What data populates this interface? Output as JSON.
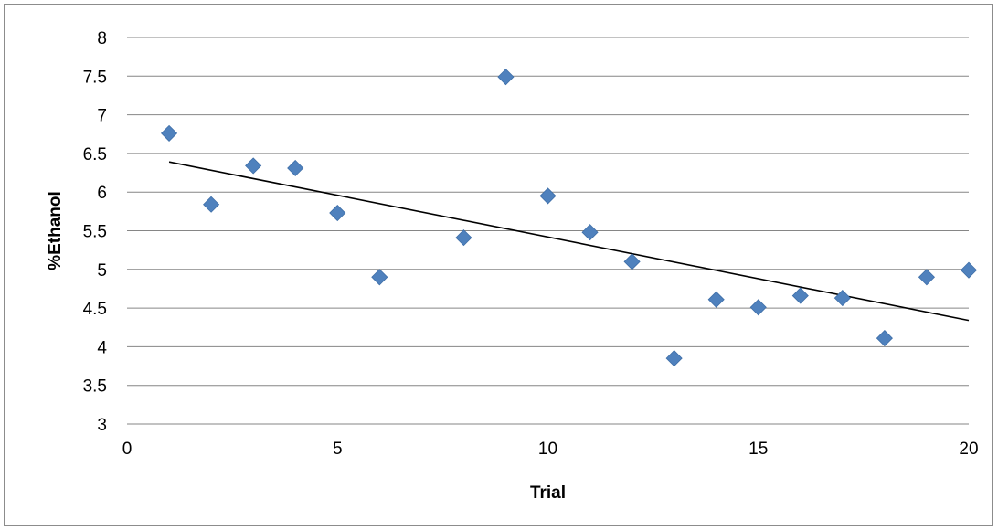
{
  "chart_data": {
    "type": "scatter",
    "title": "",
    "xlabel": "Trial",
    "ylabel": "%Ethanol",
    "xlim": [
      0,
      20
    ],
    "ylim": [
      3,
      8
    ],
    "x_ticks": [
      "0",
      "5",
      "10",
      "15",
      "20"
    ],
    "y_ticks": [
      "3",
      "3.5",
      "4",
      "4.5",
      "5",
      "5.5",
      "6",
      "6.5",
      "7",
      "7.5",
      "8"
    ],
    "grid": "horizontal",
    "legend": "none",
    "marker": "diamond",
    "marker_color": "#4f81bd",
    "series": [
      {
        "x": [
          1,
          2,
          3,
          4,
          5,
          6,
          8,
          9,
          10,
          11,
          12,
          13,
          14,
          15,
          16,
          17,
          18,
          19,
          20
        ],
        "y": [
          6.76,
          5.84,
          6.34,
          6.31,
          5.73,
          4.9,
          5.41,
          7.49,
          5.95,
          5.48,
          5.1,
          3.85,
          4.61,
          4.51,
          4.66,
          4.63,
          4.11,
          4.9,
          4.99
        ]
      }
    ],
    "trendline": {
      "type": "linear",
      "x": [
        1,
        20
      ],
      "y": [
        6.39,
        4.34
      ],
      "color": "#000000"
    }
  }
}
